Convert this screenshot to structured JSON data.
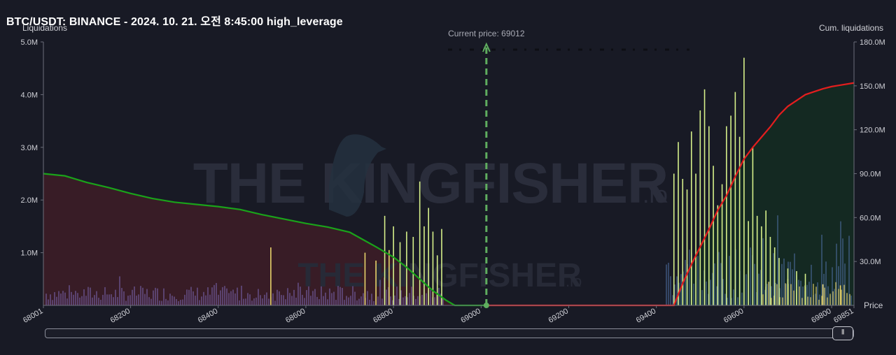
{
  "header": {
    "title": "BTC/USDT: BINANCE - 2024. 10. 21. 오전 8:45:00 high_leverage",
    "left_axis_title": "Liquidations",
    "right_axis_title": "Cum. liquidations",
    "price_label": "Price"
  },
  "watermark": {
    "brand": "THE KINGFISHER",
    "suffix": ".io"
  },
  "colors": {
    "background": "#181a25",
    "long_cum_line": "#1aa31a",
    "short_cum_line": "#e41e1e",
    "long_area": "#3a1c26",
    "short_area": "#142a22",
    "bars_purple": "#7a66b0",
    "bars_lime": "#d6f08a",
    "bars_yellow": "#e8d36a",
    "bars_blue": "#4c6a9a",
    "current_price_marker": "#5fae5f"
  },
  "chart_data": {
    "type": "bar",
    "title": "BTC/USDT: BINANCE - 2024. 10. 21. 오전 8:45:00 high_leverage",
    "xlabel": "Price",
    "ylabel": "Liquidations",
    "y2label": "Cum. liquidations",
    "xlim": [
      68001,
      69851
    ],
    "ylim": [
      0,
      5000000
    ],
    "y2lim": [
      0,
      180000000
    ],
    "x_ticks": [
      "68001",
      "68200",
      "68400",
      "68600",
      "68800",
      "69000",
      "69200",
      "69400",
      "69600",
      "69800",
      "69851"
    ],
    "y_ticks": [
      "1.0M",
      "2.0M",
      "3.0M",
      "4.0M",
      "5.0M"
    ],
    "y2_ticks": [
      "30.0M",
      "60.0M",
      "90.0M",
      "120.0M",
      "150.0M",
      "180.0M"
    ],
    "current_price": 69012,
    "current_price_label": "Current price: 69012",
    "grid": false,
    "legend": "none",
    "series": [
      {
        "kind": "line",
        "axis": "right",
        "x": [
          68001,
          68050,
          68100,
          68150,
          68200,
          68250,
          68300,
          68350,
          68400,
          68450,
          68500,
          68550,
          68600,
          68650,
          68700,
          68730,
          68760,
          68780,
          68800,
          68830,
          68860,
          68890,
          68920,
          68940,
          69012
        ],
        "values": [
          90000000,
          88500000,
          84000000,
          80500000,
          76500000,
          73000000,
          70500000,
          69000000,
          67500000,
          65500000,
          62000000,
          59000000,
          56000000,
          53500000,
          50000000,
          45000000,
          40000000,
          36500000,
          33000000,
          26000000,
          18000000,
          10000000,
          3500000,
          0,
          0
        ]
      },
      {
        "kind": "line",
        "axis": "right",
        "x": [
          69012,
          69440,
          69460,
          69480,
          69500,
          69520,
          69540,
          69560,
          69580,
          69600,
          69620,
          69640,
          69660,
          69680,
          69700,
          69720,
          69740,
          69760,
          69780,
          69800,
          69820,
          69851
        ],
        "values": [
          0,
          0,
          15000000,
          28000000,
          40000000,
          52000000,
          65000000,
          75000000,
          88000000,
          100000000,
          108000000,
          115000000,
          122000000,
          130000000,
          136000000,
          140000000,
          144000000,
          146000000,
          148000000,
          149500000,
          150500000,
          152000000
        ]
      }
    ],
    "bars_lime": {
      "x": [
        68780,
        68800,
        68815,
        68830,
        68845,
        68860,
        68870,
        68880,
        68890,
        68900,
        68910,
        69440,
        69450,
        69460,
        69470,
        69480,
        69490,
        69500,
        69510,
        69520,
        69530,
        69540,
        69550,
        69560,
        69570,
        69580,
        69590,
        69600,
        69610,
        69620,
        69630,
        69640,
        69650,
        69660,
        69670,
        69680,
        69700,
        69720,
        69740
      ],
      "values": [
        1700000,
        1500000,
        1200000,
        1400000,
        1300000,
        2350000,
        1500000,
        1850000,
        1400000,
        950000,
        1450000,
        2500000,
        3100000,
        2400000,
        2200000,
        3300000,
        2500000,
        3700000,
        4100000,
        3400000,
        2650000,
        1900000,
        2300000,
        3400000,
        3600000,
        4050000,
        3200000,
        4700000,
        1600000,
        3000000,
        1700000,
        1500000,
        1800000,
        1300000,
        1100000,
        900000,
        700000,
        650000,
        600000
      ]
    },
    "bars_yellow": {
      "x": [
        68520,
        68735,
        68760,
        68790,
        69700,
        69740,
        69780,
        69820
      ],
      "values": [
        1100000,
        1000000,
        850000,
        1050000,
        500000,
        350000,
        400000,
        380000
      ]
    }
  }
}
